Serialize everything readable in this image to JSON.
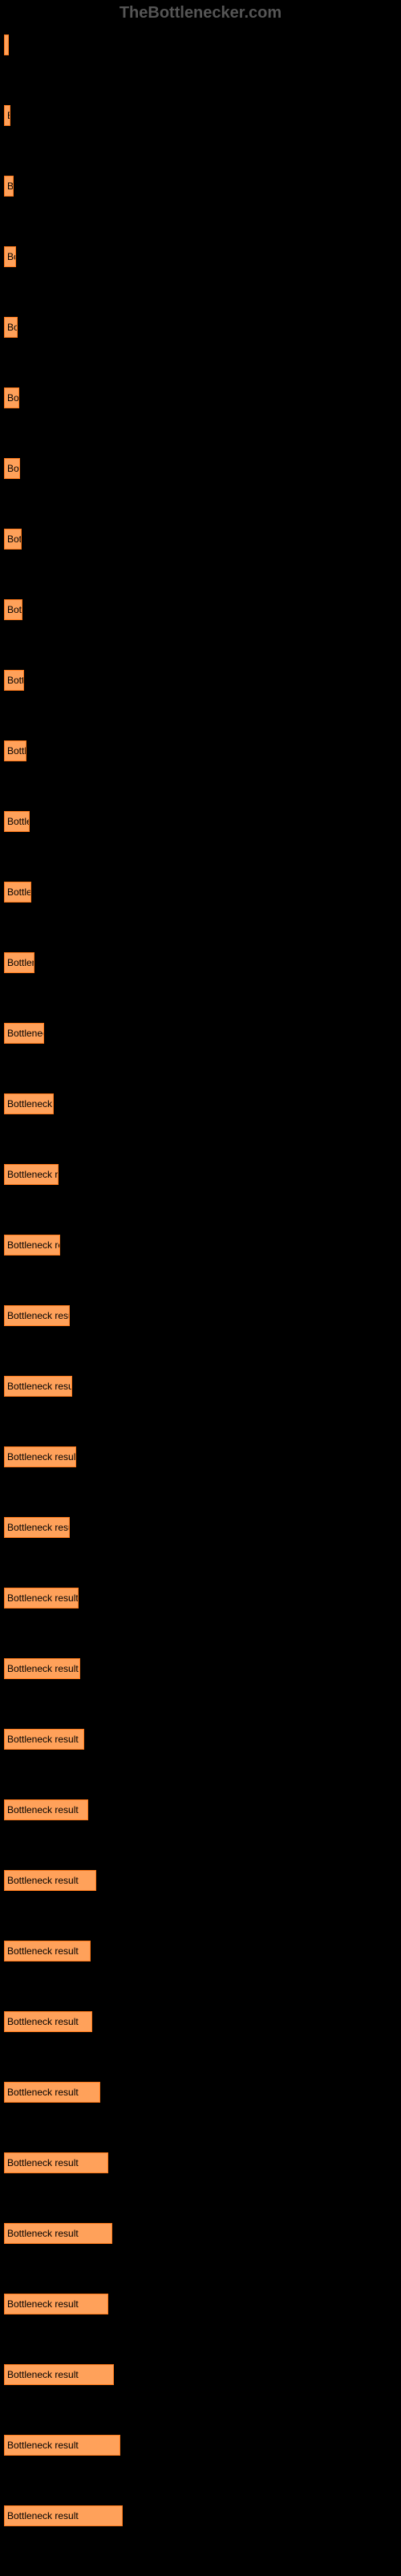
{
  "watermark": "TheBottlenecker.com",
  "chart": {
    "type": "bar",
    "background_color": "#000000",
    "bar_color": "#ffa15a",
    "bar_border_color": "#ff7a1a",
    "text_color": "#000000",
    "label_color": "#888888",
    "bar_label": "Bottleneck result",
    "max_width": 490,
    "bars": [
      {
        "width": 6
      },
      {
        "width": 8
      },
      {
        "width": 12
      },
      {
        "width": 15
      },
      {
        "width": 17
      },
      {
        "width": 19
      },
      {
        "width": 20
      },
      {
        "width": 22
      },
      {
        "width": 23
      },
      {
        "width": 25
      },
      {
        "width": 28
      },
      {
        "width": 32
      },
      {
        "width": 34
      },
      {
        "width": 38
      },
      {
        "width": 50
      },
      {
        "width": 62
      },
      {
        "width": 68
      },
      {
        "width": 70
      },
      {
        "width": 82
      },
      {
        "width": 85
      },
      {
        "width": 90
      },
      {
        "width": 82
      },
      {
        "width": 93
      },
      {
        "width": 95
      },
      {
        "width": 100
      },
      {
        "width": 105
      },
      {
        "width": 115
      },
      {
        "width": 108
      },
      {
        "width": 110
      },
      {
        "width": 120
      },
      {
        "width": 130
      },
      {
        "width": 135
      },
      {
        "width": 130
      },
      {
        "width": 137
      },
      {
        "width": 145
      },
      {
        "width": 148
      }
    ]
  }
}
